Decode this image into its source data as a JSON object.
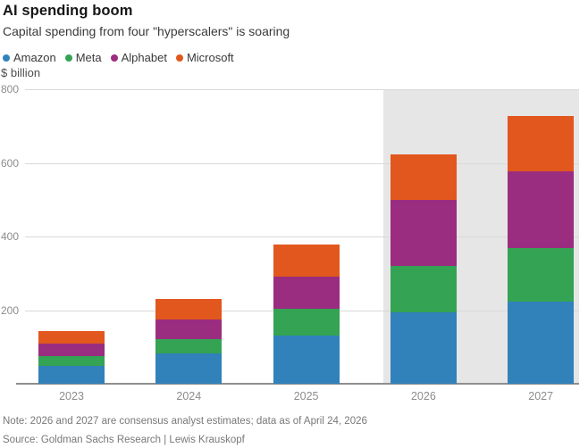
{
  "title": "AI spending boom",
  "subtitle": "Capital spending from four \"hyperscalers\" is soaring",
  "unit_label": "$ billion",
  "note": "Note: 2026 and 2027 are consensus analyst estimates; data as of April 24, 2026",
  "source": "Source: Goldman Sachs Research | Lewis Krauskopf",
  "legend": {
    "items": [
      "Amazon",
      "Meta",
      "Alphabet",
      "Microsoft"
    ]
  },
  "chart_data": {
    "type": "bar",
    "stacked": true,
    "title": "AI spending boom",
    "subtitle": "Capital spending from four \"hyperscalers\" is soaring",
    "ylabel": "$ billion",
    "xlabel": "",
    "categories": [
      "2023",
      "2024",
      "2025",
      "2026",
      "2027"
    ],
    "series": [
      {
        "name": "Amazon",
        "color": "#3181bb",
        "values": [
          48,
          83,
          131,
          195,
          222
        ]
      },
      {
        "name": "Meta",
        "color": "#34a353",
        "values": [
          28,
          39,
          72,
          125,
          147
        ]
      },
      {
        "name": "Alphabet",
        "color": "#9a2d7f",
        "values": [
          33,
          53,
          88,
          180,
          207
        ]
      },
      {
        "name": "Microsoft",
        "color": "#e2571d",
        "values": [
          35,
          56,
          88,
          122,
          152
        ]
      }
    ],
    "totals": [
      144,
      231,
      379,
      622,
      728
    ],
    "ylim": [
      0,
      800
    ],
    "yticks": [
      200,
      400,
      600,
      800
    ],
    "grid": true,
    "legend_position": "top",
    "highlight_region": {
      "categories": [
        "2026",
        "2027"
      ],
      "meaning": "consensus analyst estimates",
      "color": "#e6e6e6"
    }
  }
}
